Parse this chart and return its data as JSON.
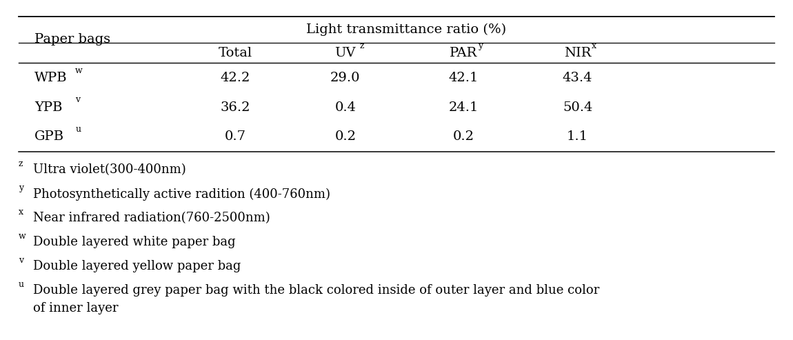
{
  "header_group": "Light transmittance ratio (%)",
  "col_headers": [
    "Total",
    "UV",
    "PAR",
    "NIR"
  ],
  "col_supers": [
    "",
    "z",
    "y",
    "x"
  ],
  "row_labels_plain": [
    "WPB",
    "YPB",
    "GPB"
  ],
  "row_supers": [
    "w",
    "v",
    "u"
  ],
  "table_data": [
    [
      "42.2",
      "29.0",
      "42.1",
      "43.4"
    ],
    [
      "36.2",
      "0.4",
      "24.1",
      "50.4"
    ],
    [
      "0.7",
      "0.2",
      "0.2",
      "1.1"
    ]
  ],
  "footnote_markers": [
    "z",
    "y",
    "x",
    "w",
    "v",
    "u"
  ],
  "footnote_texts": [
    "Ultra violet(300-400nm)",
    "Photosynthetically active radition (400-760nm)",
    "Near infrared radiation(760-2500nm)",
    "Double layered white paper bag",
    "Double layered yellow paper bag",
    "Double layered grey paper bag with the black colored inside of outer layer and blue color"
  ],
  "footnote_last_line": "of inner layer",
  "bg_color": "#ffffff",
  "text_color": "#000000",
  "font_size": 14,
  "super_font_size": 9,
  "footnote_font_size": 13,
  "footnote_super_font_size": 9
}
